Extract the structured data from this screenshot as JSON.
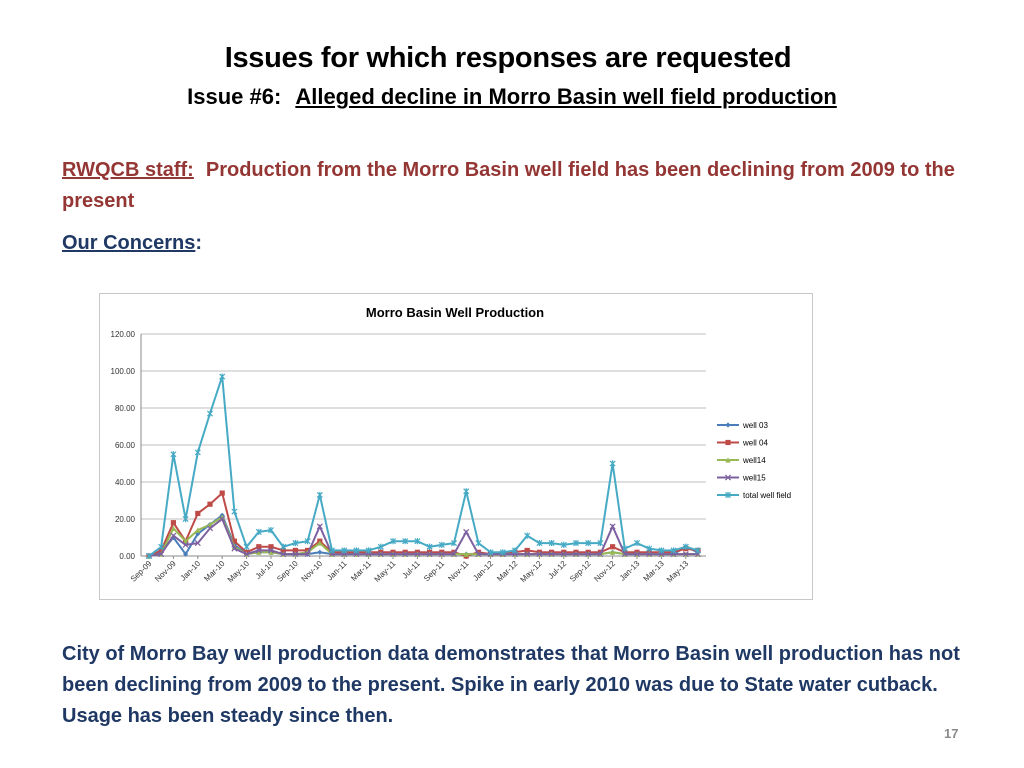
{
  "header": {
    "title": "Issues for which responses are requested",
    "issue_prefix": "Issue #6:",
    "issue_text": "Alleged decline in Morro Basin well field production"
  },
  "staff": {
    "label": "RWQCB staff:",
    "text": "Production from the Morro Basin well field has been declining from 2009 to the present"
  },
  "concerns": {
    "label": "Our Concerns",
    "colon": ":"
  },
  "conclusion": "City of Morro Bay well production data demonstrates that Morro Basin well production has not been declining from 2009 to the present. Spike in early 2010 was due to State water cutback.  Usage has been steady since then.",
  "page_number": "17",
  "colors": {
    "staff_red": "#943634",
    "body_blue": "#1f3864"
  },
  "chart_data": {
    "type": "line",
    "title": "Morro Basin Well Production",
    "xlabel": "",
    "ylabel": "",
    "ylim": [
      0,
      120
    ],
    "yticks": [
      "0.00",
      "20.00",
      "40.00",
      "60.00",
      "80.00",
      "100.00",
      "120.00"
    ],
    "grid": true,
    "legend_position": "right",
    "x": [
      "Sep-09",
      "Oct-09",
      "Nov-09",
      "Dec-09",
      "Jan-10",
      "Feb-10",
      "Mar-10",
      "Apr-10",
      "May-10",
      "Jun-10",
      "Jul-10",
      "Aug-10",
      "Sep-10",
      "Oct-10",
      "Nov-10",
      "Dec-10",
      "Jan-11",
      "Feb-11",
      "Mar-11",
      "Apr-11",
      "May-11",
      "Jun-11",
      "Jul-11",
      "Aug-11",
      "Sep-11",
      "Oct-11",
      "Nov-11",
      "Dec-11",
      "Jan-12",
      "Feb-12",
      "Mar-12",
      "Apr-12",
      "May-12",
      "Jun-12",
      "Jul-12",
      "Aug-12",
      "Sep-12",
      "Oct-12",
      "Nov-12",
      "Dec-12",
      "Jan-13",
      "Feb-13",
      "Mar-13",
      "Apr-13",
      "May-13",
      "Jun-13"
    ],
    "x_tick_labels": [
      "Sep-09",
      "Nov-09",
      "Jan-10",
      "Mar-10",
      "May-10",
      "Jul-10",
      "Sep-10",
      "Nov-10",
      "Jan-11",
      "Mar-11",
      "May-11",
      "Jul-11",
      "Sep-11",
      "Nov-11",
      "Jan-12",
      "Mar-12",
      "May-12",
      "Jul-12",
      "Sep-12",
      "Nov-12",
      "Jan-13",
      "Mar-13",
      "May-13"
    ],
    "series": [
      {
        "name": "well 03",
        "color": "#4a7ebb",
        "marker": "diamond",
        "values": [
          0,
          2,
          10,
          1,
          12,
          17,
          22,
          6,
          1,
          2,
          2,
          1,
          1,
          1,
          2,
          1,
          1,
          1,
          1,
          1,
          1,
          1,
          1,
          1,
          1,
          1,
          1,
          1,
          1,
          1,
          1,
          1,
          1,
          1,
          1,
          1,
          1,
          1,
          2,
          1,
          1,
          1,
          1,
          1,
          5,
          2
        ]
      },
      {
        "name": "well 04",
        "color": "#be4b48",
        "marker": "square",
        "values": [
          0,
          3,
          18,
          8,
          23,
          28,
          34,
          8,
          2,
          5,
          5,
          3,
          3,
          3,
          8,
          2,
          2,
          2,
          2,
          2,
          2,
          2,
          2,
          2,
          2,
          2,
          0,
          2,
          1,
          1,
          2,
          3,
          2,
          2,
          2,
          2,
          2,
          2,
          5,
          2,
          2,
          2,
          2,
          2,
          4,
          3
        ]
      },
      {
        "name": "well14",
        "color": "#98b954",
        "marker": "triangle",
        "values": [
          0,
          1,
          15,
          8,
          14,
          17,
          21,
          5,
          1,
          2,
          2,
          1,
          1,
          2,
          7,
          1,
          1,
          1,
          1,
          1,
          1,
          1,
          1,
          1,
          1,
          1,
          1,
          1,
          1,
          1,
          1,
          1,
          1,
          1,
          1,
          1,
          1,
          1,
          2,
          1,
          1,
          1,
          1,
          1,
          1,
          1
        ]
      },
      {
        "name": "well15",
        "color": "#7d60a0",
        "marker": "x",
        "values": [
          0,
          1,
          11,
          6,
          7,
          15,
          20,
          4,
          1,
          3,
          3,
          1,
          1,
          1,
          16,
          1,
          1,
          1,
          1,
          1,
          1,
          1,
          1,
          1,
          1,
          1,
          13,
          1,
          1,
          1,
          1,
          1,
          1,
          1,
          1,
          1,
          1,
          1,
          16,
          1,
          1,
          1,
          1,
          1,
          1,
          1
        ]
      },
      {
        "name": "total well field",
        "color": "#46aac5",
        "marker": "star",
        "values": [
          0,
          5,
          55,
          20,
          56,
          77,
          97,
          24,
          5,
          13,
          14,
          5,
          7,
          8,
          33,
          3,
          3,
          3,
          3,
          5,
          8,
          8,
          8,
          5,
          6,
          7,
          35,
          7,
          2,
          2,
          3,
          11,
          7,
          7,
          6,
          7,
          7,
          7,
          50,
          4,
          7,
          4,
          3,
          3,
          5,
          3
        ]
      }
    ]
  }
}
